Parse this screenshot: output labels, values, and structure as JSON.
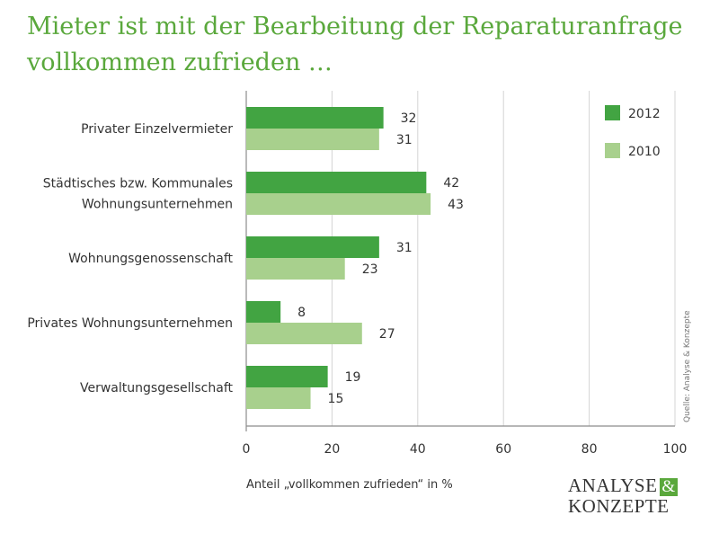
{
  "title": {
    "line1": "Mieter ist mit der Bearbeitung der Reparaturanfrage",
    "line2": "vollkommen zufrieden …"
  },
  "source_note": "Quelle: Analyse & Konzepte",
  "logo": {
    "word1": "ANALYSE",
    "amp": "&",
    "word2": "KONZEPTE"
  },
  "colors": {
    "series_2012": "#42a442",
    "series_2010": "#a8d08d",
    "title": "#5aa83c"
  },
  "chart_data": {
    "type": "bar",
    "orientation": "horizontal",
    "categories": [
      [
        "Privater Einzelvermieter"
      ],
      [
        "Städtisches bzw. Kommunales",
        "Wohnungsunternehmen"
      ],
      [
        "Wohnungsgenossenschaft"
      ],
      [
        "Privates Wohnungsunternehmen"
      ],
      [
        "Verwaltungsgesellschaft"
      ]
    ],
    "series": [
      {
        "name": "2012",
        "values": [
          32,
          42,
          31,
          8,
          19
        ]
      },
      {
        "name": "2010",
        "values": [
          31,
          43,
          23,
          27,
          15
        ]
      }
    ],
    "xlabel": "Anteil „vollkommen zufrieden“ in %",
    "xlim": [
      0,
      100
    ],
    "xticks": [
      0,
      20,
      40,
      60,
      80,
      100
    ],
    "grid": true,
    "legend": "top-right",
    "data_labels": true
  }
}
